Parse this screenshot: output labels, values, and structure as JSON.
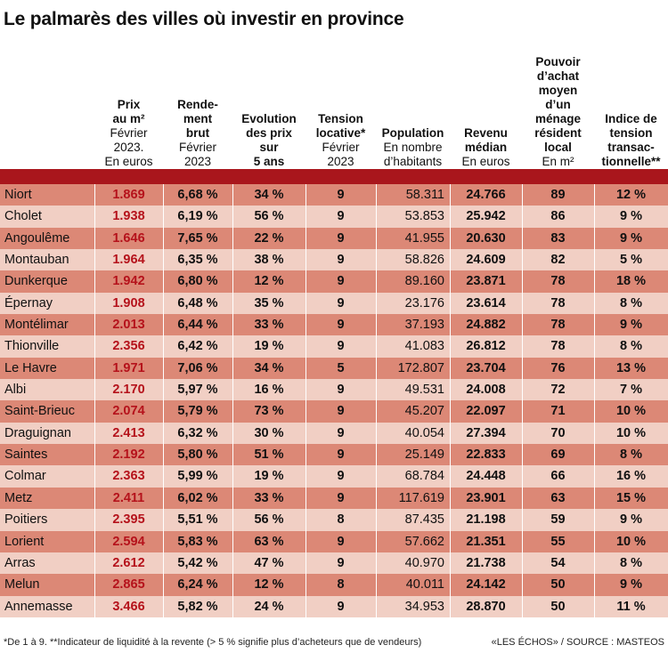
{
  "title": "Le palmarès des villes où investir en province",
  "headers": {
    "price": {
      "l1": "Prix",
      "l2": "au m²",
      "l3": "Février",
      "l4": "2023.",
      "l5": "En euros"
    },
    "yield": {
      "l1": "Rende-",
      "l2": "ment",
      "l3": "brut",
      "l4": "Février",
      "l5": "2023"
    },
    "evo": {
      "l1": "Evolution",
      "l2": "des prix",
      "l3": "sur",
      "l4": "5 ans"
    },
    "tens": {
      "l1": "Tension",
      "l2": "locative*",
      "l3": "Février",
      "l4": "2023"
    },
    "pop": {
      "l1": "Population",
      "l2": "En nombre",
      "l3": "d’habitants"
    },
    "rev": {
      "l1": "Revenu",
      "l2": "médian",
      "l3": "En euros"
    },
    "pouv": {
      "l1": "Pouvoir",
      "l2": "d’achat",
      "l3": "moyen",
      "l4": "d’un",
      "l5": "ménage",
      "l6": "résident",
      "l7": "local",
      "l8": "En m²"
    },
    "idx": {
      "l1": "Indice de",
      "l2": "tension",
      "l3": "transac-",
      "l4": "tionnelle**"
    }
  },
  "rows": [
    {
      "city": "Niort",
      "price": "1.869",
      "yield": "6,68 %",
      "evo": "34 %",
      "tens": "9",
      "pop": "58.311",
      "rev": "24.766",
      "pouv": "89",
      "idx": "12 %"
    },
    {
      "city": "Cholet",
      "price": "1.938",
      "yield": "6,19 %",
      "evo": "56 %",
      "tens": "9",
      "pop": "53.853",
      "rev": "25.942",
      "pouv": "86",
      "idx": "9 %"
    },
    {
      "city": "Angoulême",
      "price": "1.646",
      "yield": "7,65 %",
      "evo": "22 %",
      "tens": "9",
      "pop": "41.955",
      "rev": "20.630",
      "pouv": "83",
      "idx": "9 %"
    },
    {
      "city": "Montauban",
      "price": "1.964",
      "yield": "6,35 %",
      "evo": "38 %",
      "tens": "9",
      "pop": "58.826",
      "rev": "24.609",
      "pouv": "82",
      "idx": "5 %"
    },
    {
      "city": "Dunkerque",
      "price": "1.942",
      "yield": "6,80 %",
      "evo": "12 %",
      "tens": "9",
      "pop": "89.160",
      "rev": "23.871",
      "pouv": "78",
      "idx": "18 %"
    },
    {
      "city": "Épernay",
      "price": "1.908",
      "yield": "6,48 %",
      "evo": "35 %",
      "tens": "9",
      "pop": "23.176",
      "rev": "23.614",
      "pouv": "78",
      "idx": "8 %"
    },
    {
      "city": "Montélimar",
      "price": "2.013",
      "yield": "6,44 %",
      "evo": "33 %",
      "tens": "9",
      "pop": "37.193",
      "rev": "24.882",
      "pouv": "78",
      "idx": "9 %"
    },
    {
      "city": "Thionville",
      "price": "2.356",
      "yield": "6,42 %",
      "evo": "19 %",
      "tens": "9",
      "pop": "41.083",
      "rev": "26.812",
      "pouv": "78",
      "idx": "8 %"
    },
    {
      "city": "Le Havre",
      "price": "1.971",
      "yield": "7,06 %",
      "evo": "34 %",
      "tens": "5",
      "pop": "172.807",
      "rev": "23.704",
      "pouv": "76",
      "idx": "13 %"
    },
    {
      "city": "Albi",
      "price": "2.170",
      "yield": "5,97 %",
      "evo": "16 %",
      "tens": "9",
      "pop": "49.531",
      "rev": "24.008",
      "pouv": "72",
      "idx": "7 %"
    },
    {
      "city": "Saint-Brieuc",
      "price": "2.074",
      "yield": "5,79 %",
      "evo": "73 %",
      "tens": "9",
      "pop": "45.207",
      "rev": "22.097",
      "pouv": "71",
      "idx": "10 %"
    },
    {
      "city": "Draguignan",
      "price": "2.413",
      "yield": "6,32 %",
      "evo": "30 %",
      "tens": "9",
      "pop": "40.054",
      "rev": "27.394",
      "pouv": "70",
      "idx": "10 %"
    },
    {
      "city": "Saintes",
      "price": "2.192",
      "yield": "5,80 %",
      "evo": "51 %",
      "tens": "9",
      "pop": "25.149",
      "rev": "22.833",
      "pouv": "69",
      "idx": "8 %"
    },
    {
      "city": "Colmar",
      "price": "2.363",
      "yield": "5,99 %",
      "evo": "19 %",
      "tens": "9",
      "pop": "68.784",
      "rev": "24.448",
      "pouv": "66",
      "idx": "16 %"
    },
    {
      "city": "Metz",
      "price": "2.411",
      "yield": "6,02 %",
      "evo": "33 %",
      "tens": "9",
      "pop": "117.619",
      "rev": "23.901",
      "pouv": "63",
      "idx": "15 %"
    },
    {
      "city": "Poitiers",
      "price": "2.395",
      "yield": "5,51 %",
      "evo": "56 %",
      "tens": "8",
      "pop": "87.435",
      "rev": "21.198",
      "pouv": "59",
      "idx": "9 %"
    },
    {
      "city": "Lorient",
      "price": "2.594",
      "yield": "5,83 %",
      "evo": "63 %",
      "tens": "9",
      "pop": "57.662",
      "rev": "21.351",
      "pouv": "55",
      "idx": "10 %"
    },
    {
      "city": "Arras",
      "price": "2.612",
      "yield": "5,42 %",
      "evo": "47 %",
      "tens": "9",
      "pop": "40.970",
      "rev": "21.738",
      "pouv": "54",
      "idx": "8 %"
    },
    {
      "city": "Melun",
      "price": "2.865",
      "yield": "6,24 %",
      "evo": "12 %",
      "tens": "8",
      "pop": "40.011",
      "rev": "24.142",
      "pouv": "50",
      "idx": "9 %"
    },
    {
      "city": "Annemasse",
      "price": "3.466",
      "yield": "5,82 %",
      "evo": "24 %",
      "tens": "9",
      "pop": "34.953",
      "rev": "28.870",
      "pouv": "50",
      "idx": "11 %"
    }
  ],
  "footnote": "*De 1 à 9. **Indicateur de liquidité à la revente (> 5 % signifie plus d’acheteurs que de vendeurs)",
  "source": "«LES ÉCHOS» / SOURCE : MASTEOS",
  "colors": {
    "accent": "#a9161c",
    "row_dark": "#dc8876",
    "row_light": "#f1cfc4",
    "price_red": "#b5121b"
  }
}
